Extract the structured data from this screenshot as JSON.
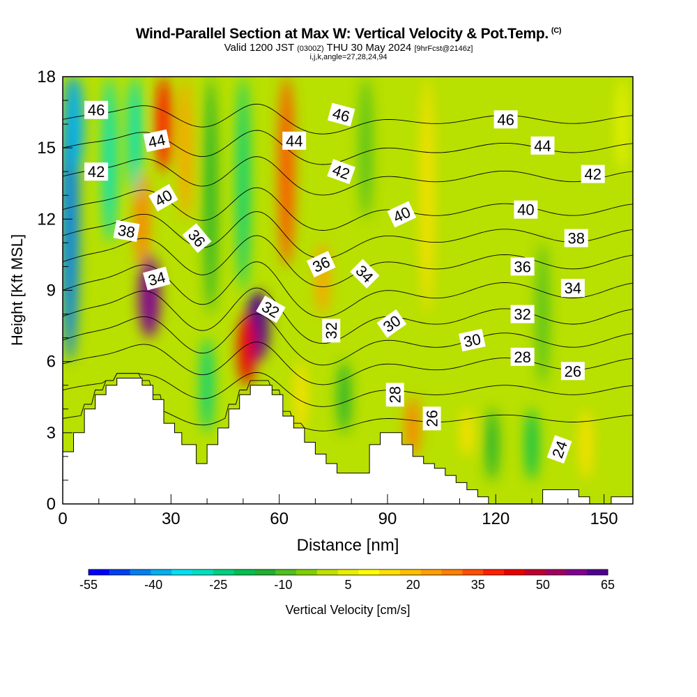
{
  "title": {
    "main": "Wind-Parallel Section at Max W: Vertical Velocity & Pot.Temp.",
    "copyright": "(C)",
    "valid_prefix": "Valid 1200 JST",
    "valid_utc": "(0300Z)",
    "valid_date": "THU 30 May 2024",
    "forecast": "[9hrFcst@2146z]",
    "indices": "i,j,k,angle=27,28,24,94"
  },
  "chart_data": {
    "type": "heatmap",
    "xlabel": "Distance [nm]",
    "ylabel": "Height [Kft MSL]",
    "xlim": [
      0,
      158
    ],
    "ylim": [
      0,
      18
    ],
    "x_ticks": [
      0,
      30,
      60,
      90,
      120,
      150
    ],
    "y_ticks": [
      0,
      3,
      6,
      9,
      12,
      15,
      18
    ],
    "colorbar": {
      "label": "Vertical Velocity [cm/s]",
      "tick_labels": [
        "-55",
        "-40",
        "-25",
        "-10",
        "5",
        "20",
        "35",
        "50",
        "65"
      ],
      "colors": [
        "#0000ff",
        "#0040f0",
        "#0080f0",
        "#00b0f0",
        "#00e0f0",
        "#00e0c0",
        "#00d080",
        "#00c050",
        "#20b030",
        "#50c020",
        "#80d000",
        "#c0e000",
        "#e8f000",
        "#ffff00",
        "#ffe000",
        "#ffc000",
        "#ffa000",
        "#ff8000",
        "#ff5000",
        "#ff2000",
        "#e80000",
        "#c00030",
        "#a00060",
        "#800090",
        "#500090"
      ]
    },
    "velocity_features": [
      {
        "x": 2,
        "y0": 6,
        "y1": 18,
        "w": -45
      },
      {
        "x": 3.5,
        "y0": 14,
        "y1": 18,
        "w": -40
      },
      {
        "x": 13,
        "y0": 11,
        "y1": 18,
        "w": -30
      },
      {
        "x": 24,
        "y0": 7,
        "y1": 10.5,
        "w": 60
      },
      {
        "x": 22,
        "y0": 10,
        "y1": 14,
        "w": 30
      },
      {
        "x": 28,
        "y0": 14,
        "y1": 18,
        "w": 40
      },
      {
        "x": 20,
        "y0": 13,
        "y1": 18,
        "w": -30
      },
      {
        "x": 34,
        "y0": 12,
        "y1": 18,
        "w": 25
      },
      {
        "x": 40,
        "y0": 3,
        "y1": 7,
        "w": -25
      },
      {
        "x": 41,
        "y0": 8,
        "y1": 18,
        "w": -15
      },
      {
        "x": 54,
        "y0": 6,
        "y1": 9,
        "w": 65
      },
      {
        "x": 51,
        "y0": 5,
        "y1": 8,
        "w": 45
      },
      {
        "x": 50,
        "y0": 9,
        "y1": 18,
        "w": -25
      },
      {
        "x": 62,
        "y0": 10,
        "y1": 18,
        "w": 35
      },
      {
        "x": 72,
        "y0": 8,
        "y1": 11,
        "w": 25
      },
      {
        "x": 66,
        "y0": 3,
        "y1": 6,
        "w": 15
      },
      {
        "x": 78,
        "y0": 3,
        "y1": 6,
        "w": -15
      },
      {
        "x": 84,
        "y0": 12,
        "y1": 18,
        "w": -10
      },
      {
        "x": 97,
        "y0": 2,
        "y1": 4.5,
        "w": 30
      },
      {
        "x": 101,
        "y0": 8,
        "y1": 18,
        "w": 15
      },
      {
        "x": 112,
        "y0": 2,
        "y1": 4,
        "w": 15
      },
      {
        "x": 119,
        "y0": 1,
        "y1": 4,
        "w": -15
      },
      {
        "x": 130,
        "y0": 1,
        "y1": 4,
        "w": -20
      },
      {
        "x": 133,
        "y0": 5,
        "y1": 11,
        "w": -8
      },
      {
        "x": 145,
        "y0": 1,
        "y1": 4,
        "w": 15
      },
      {
        "x": 155,
        "y0": 14,
        "y1": 18,
        "w": 5
      }
    ],
    "terrain_kft": [
      [
        0,
        2.2
      ],
      [
        3,
        2.2
      ],
      [
        3,
        3
      ],
      [
        6,
        3
      ],
      [
        6,
        4
      ],
      [
        9,
        4
      ],
      [
        9,
        4.6
      ],
      [
        12,
        4.6
      ],
      [
        12,
        5
      ],
      [
        15,
        5
      ],
      [
        15,
        5.3
      ],
      [
        22,
        5.3
      ],
      [
        22,
        5
      ],
      [
        25,
        5
      ],
      [
        25,
        4.4
      ],
      [
        28,
        4.4
      ],
      [
        28,
        3.4
      ],
      [
        31,
        3.4
      ],
      [
        31,
        3
      ],
      [
        33,
        3
      ],
      [
        33,
        2.5
      ],
      [
        37,
        2.5
      ],
      [
        37,
        1.7
      ],
      [
        40,
        1.7
      ],
      [
        40,
        2.5
      ],
      [
        43,
        2.5
      ],
      [
        43,
        3.2
      ],
      [
        46,
        3.2
      ],
      [
        46,
        4
      ],
      [
        49,
        4
      ],
      [
        49,
        4.6
      ],
      [
        52,
        4.6
      ],
      [
        52,
        5
      ],
      [
        58,
        5
      ],
      [
        58,
        4.6
      ],
      [
        61,
        4.6
      ],
      [
        61,
        3.7
      ],
      [
        64,
        3.7
      ],
      [
        64,
        3.2
      ],
      [
        67,
        3.2
      ],
      [
        67,
        2.6
      ],
      [
        70,
        2.6
      ],
      [
        70,
        2.1
      ],
      [
        73,
        2.1
      ],
      [
        73,
        1.7
      ],
      [
        76,
        1.7
      ],
      [
        76,
        1.3
      ],
      [
        85,
        1.3
      ],
      [
        85,
        2.5
      ],
      [
        88,
        2.5
      ],
      [
        88,
        3
      ],
      [
        94,
        3
      ],
      [
        94,
        2.5
      ],
      [
        97,
        2.5
      ],
      [
        97,
        2
      ],
      [
        100,
        2
      ],
      [
        100,
        1.7
      ],
      [
        103,
        1.7
      ],
      [
        103,
        1.5
      ],
      [
        106,
        1.5
      ],
      [
        106,
        1.2
      ],
      [
        109,
        1.2
      ],
      [
        109,
        0.9
      ],
      [
        112,
        0.9
      ],
      [
        112,
        0.6
      ],
      [
        115,
        0.6
      ],
      [
        115,
        0.3
      ],
      [
        118,
        0.3
      ],
      [
        118,
        0
      ],
      [
        133,
        0
      ],
      [
        133,
        0.6
      ],
      [
        143,
        0.6
      ],
      [
        143,
        0.3
      ],
      [
        146,
        0.3
      ],
      [
        146,
        0
      ],
      [
        152,
        0
      ],
      [
        152,
        0.3
      ],
      [
        158,
        0.3
      ]
    ],
    "isentropes": [
      {
        "theta": 24,
        "y": 3.6,
        "amp": 0.6
      },
      {
        "theta": 26,
        "y": 4.8,
        "amp": 0.8
      },
      {
        "theta": 28,
        "y": 5.9,
        "amp": 1.0
      },
      {
        "theta": 30,
        "y": 6.9,
        "amp": 1.2
      },
      {
        "theta": 32,
        "y": 7.9,
        "amp": 1.3
      },
      {
        "theta": 34,
        "y": 9.0,
        "amp": 1.3
      },
      {
        "theta": 36,
        "y": 10.2,
        "amp": 1.2
      },
      {
        "theta": 38,
        "y": 11.3,
        "amp": 1.1
      },
      {
        "theta": 40,
        "y": 12.4,
        "amp": 1.0
      },
      {
        "theta": 42,
        "y": 13.8,
        "amp": 0.9
      },
      {
        "theta": 44,
        "y": 15.0,
        "amp": 0.8
      },
      {
        "theta": 46,
        "y": 16.2,
        "amp": 0.7
      }
    ],
    "contour_labels": [
      {
        "text": "46",
        "x": 10,
        "y": 16.6,
        "rot": 0
      },
      {
        "text": "44",
        "x": 28,
        "y": 15.3,
        "rot": -12
      },
      {
        "text": "42",
        "x": 10,
        "y": 14.0,
        "rot": 0
      },
      {
        "text": "40",
        "x": 30,
        "y": 12.9,
        "rot": -30
      },
      {
        "text": "38",
        "x": 19,
        "y": 11.5,
        "rot": 10
      },
      {
        "text": "36",
        "x": 40,
        "y": 11.2,
        "rot": 50
      },
      {
        "text": "34",
        "x": 28,
        "y": 9.5,
        "rot": -15
      },
      {
        "text": "44",
        "x": 69,
        "y": 15.3,
        "rot": 0
      },
      {
        "text": "46",
        "x": 83,
        "y": 16.4,
        "rot": 15
      },
      {
        "text": "42",
        "x": 83,
        "y": 14.0,
        "rot": 20
      },
      {
        "text": "40",
        "x": 101,
        "y": 12.2,
        "rot": -25
      },
      {
        "text": "36",
        "x": 77,
        "y": 10.1,
        "rot": -25
      },
      {
        "text": "34",
        "x": 90,
        "y": 9.7,
        "rot": 45
      },
      {
        "text": "32",
        "x": 62,
        "y": 8.2,
        "rot": 30
      },
      {
        "text": "32",
        "x": 80,
        "y": 7.3,
        "rot": -90
      },
      {
        "text": "30",
        "x": 98,
        "y": 7.6,
        "rot": -35
      },
      {
        "text": "28",
        "x": 99,
        "y": 4.6,
        "rot": -90
      },
      {
        "text": "26",
        "x": 110,
        "y": 3.6,
        "rot": -90
      },
      {
        "text": "30",
        "x": 122,
        "y": 6.9,
        "rot": -12
      },
      {
        "text": "46",
        "x": 132,
        "y": 16.2,
        "rot": 0
      },
      {
        "text": "44",
        "x": 143,
        "y": 15.1,
        "rot": 0
      },
      {
        "text": "42",
        "x": 158,
        "y": 13.9,
        "rot": 0
      },
      {
        "text": "40",
        "x": 138,
        "y": 12.4,
        "rot": 0
      },
      {
        "text": "38",
        "x": 153,
        "y": 11.2,
        "rot": 0
      },
      {
        "text": "36",
        "x": 137,
        "y": 10.0,
        "rot": 0
      },
      {
        "text": "34",
        "x": 152,
        "y": 9.1,
        "rot": 0
      },
      {
        "text": "32",
        "x": 137,
        "y": 8.0,
        "rot": 0
      },
      {
        "text": "28",
        "x": 137,
        "y": 6.2,
        "rot": 0
      },
      {
        "text": "26",
        "x": 152,
        "y": 5.6,
        "rot": 0
      },
      {
        "text": "24",
        "x": 148,
        "y": 2.3,
        "rot": -70
      }
    ]
  }
}
